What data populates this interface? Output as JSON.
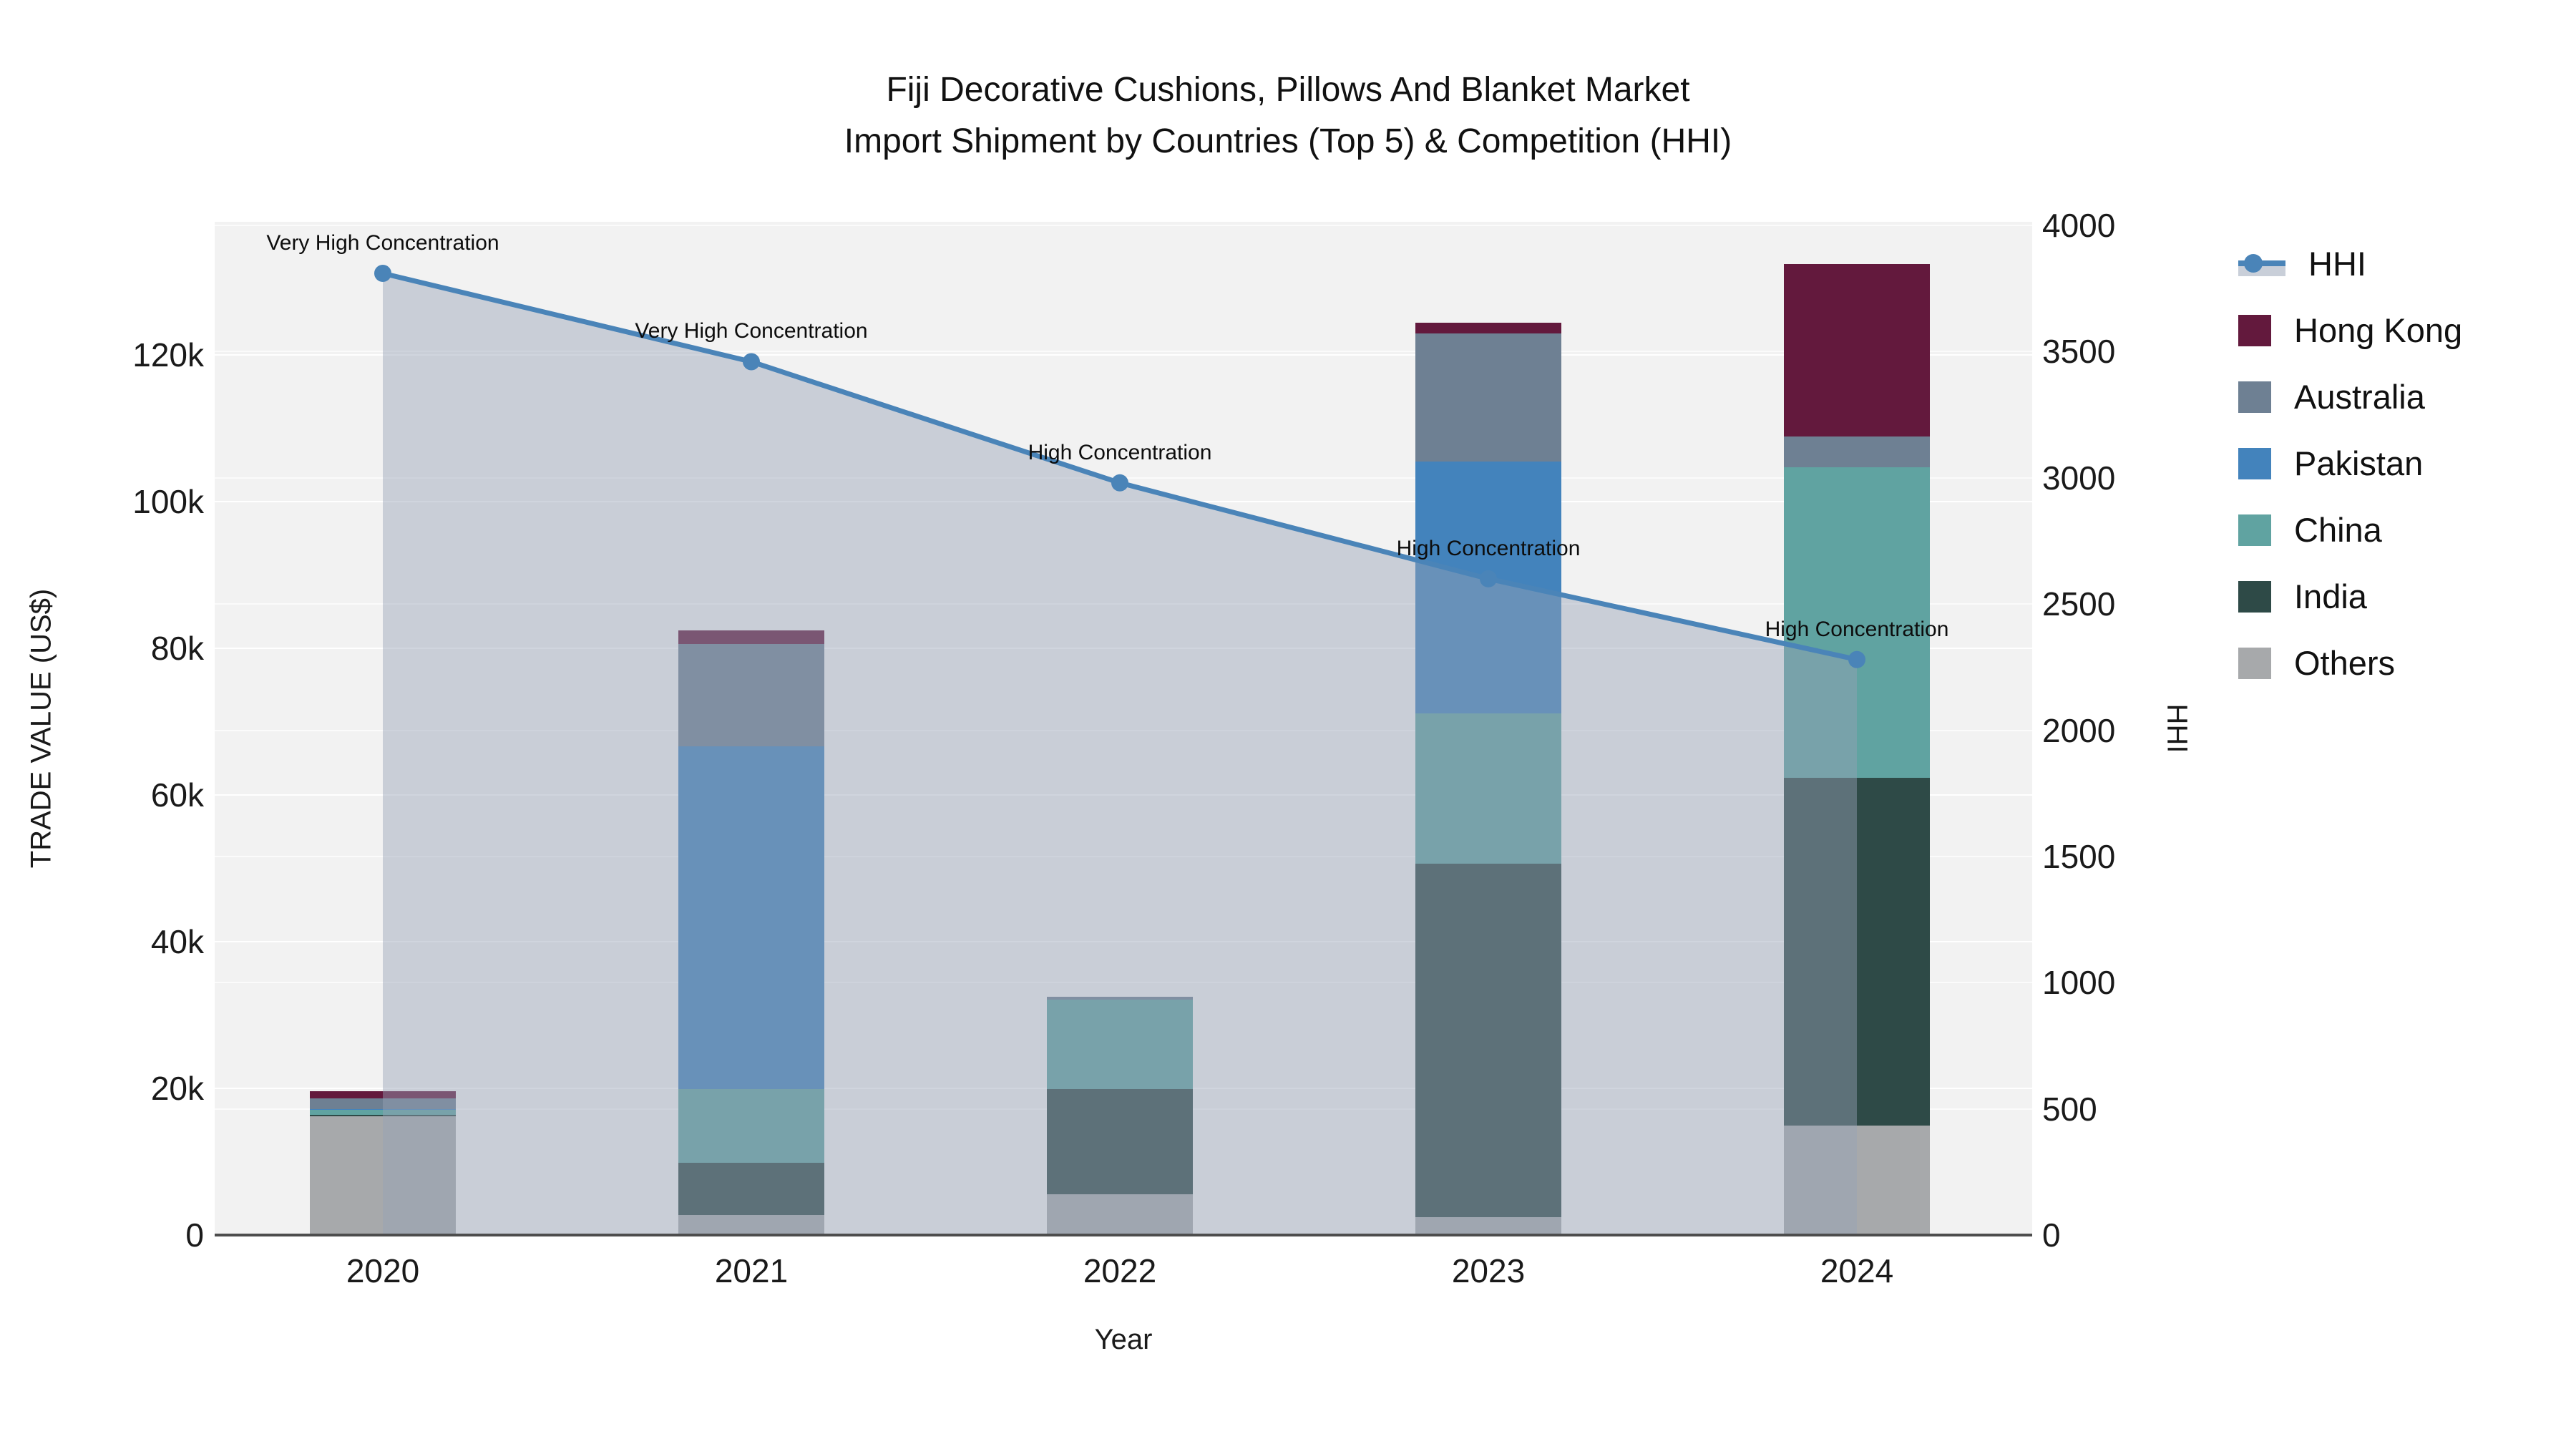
{
  "title": {
    "line1": "Fiji Decorative Cushions, Pillows And Blanket Market",
    "line2": "Import Shipment by Countries (Top 5) & Competition (HHI)"
  },
  "chart_data": {
    "type": "bar+line",
    "categories": [
      "2020",
      "2021",
      "2022",
      "2023",
      "2024"
    ],
    "stack_order_bottom_to_top": [
      "Others",
      "India",
      "China",
      "Pakistan",
      "Australia",
      "Hong Kong"
    ],
    "series": [
      {
        "name": "Hong Kong",
        "color": "#63193d",
        "values": [
          1000,
          1800,
          0,
          1500,
          23500
        ]
      },
      {
        "name": "Australia",
        "color": "#6e8093",
        "values": [
          1400,
          14000,
          400,
          17400,
          4200
        ]
      },
      {
        "name": "Pakistan",
        "color": "#4383bc",
        "values": [
          100,
          46700,
          0,
          34400,
          0
        ]
      },
      {
        "name": "China",
        "color": "#60a3a1",
        "values": [
          700,
          10000,
          12200,
          20500,
          42400
        ]
      },
      {
        "name": "India",
        "color": "#2e4a47",
        "values": [
          200,
          7200,
          14300,
          48200,
          47400
        ]
      },
      {
        "name": "Others",
        "color": "#a7a9ab",
        "values": [
          16200,
          2700,
          5600,
          2400,
          14900
        ]
      }
    ],
    "line_series": {
      "name": "HHI",
      "color": "#4a84b8",
      "fill_color": "rgba(150,162,182,0.45)",
      "values": [
        3810,
        3460,
        2980,
        2600,
        2280
      ]
    },
    "annotations": [
      "Very High Concentration",
      "Very High Concentration",
      "High Concentration",
      "High Concentration",
      "High Concentration"
    ],
    "left_axis": {
      "title": "TRADE VALUE (US$)",
      "ticks": [
        {
          "label": "0",
          "value": 0
        },
        {
          "label": "20k",
          "value": 20000
        },
        {
          "label": "40k",
          "value": 40000
        },
        {
          "label": "60k",
          "value": 60000
        },
        {
          "label": "80k",
          "value": 80000
        },
        {
          "label": "100k",
          "value": 100000
        },
        {
          "label": "120k",
          "value": 120000
        }
      ],
      "range": [
        0,
        138000
      ]
    },
    "right_axis": {
      "title": "HHI",
      "ticks": [
        {
          "label": "0",
          "value": 0
        },
        {
          "label": "500",
          "value": 500
        },
        {
          "label": "1000",
          "value": 1000
        },
        {
          "label": "1500",
          "value": 1500
        },
        {
          "label": "2000",
          "value": 2000
        },
        {
          "label": "2500",
          "value": 2500
        },
        {
          "label": "3000",
          "value": 3000
        },
        {
          "label": "3500",
          "value": 3500
        },
        {
          "label": "4000",
          "value": 4000
        }
      ],
      "range": [
        0,
        4000
      ]
    },
    "x_axis": {
      "title": "Year"
    },
    "plot_background": "#f2f2f2"
  },
  "legend": {
    "items": [
      {
        "label": "HHI",
        "type": "line",
        "color": "#4a84b8"
      },
      {
        "label": "Hong Kong",
        "type": "swatch",
        "color": "#63193d"
      },
      {
        "label": "Australia",
        "type": "swatch",
        "color": "#6e8093"
      },
      {
        "label": "Pakistan",
        "type": "swatch",
        "color": "#4383bc"
      },
      {
        "label": "China",
        "type": "swatch",
        "color": "#60a3a1"
      },
      {
        "label": "India",
        "type": "swatch",
        "color": "#2e4a47"
      },
      {
        "label": "Others",
        "type": "swatch",
        "color": "#a7a9ab"
      }
    ]
  }
}
